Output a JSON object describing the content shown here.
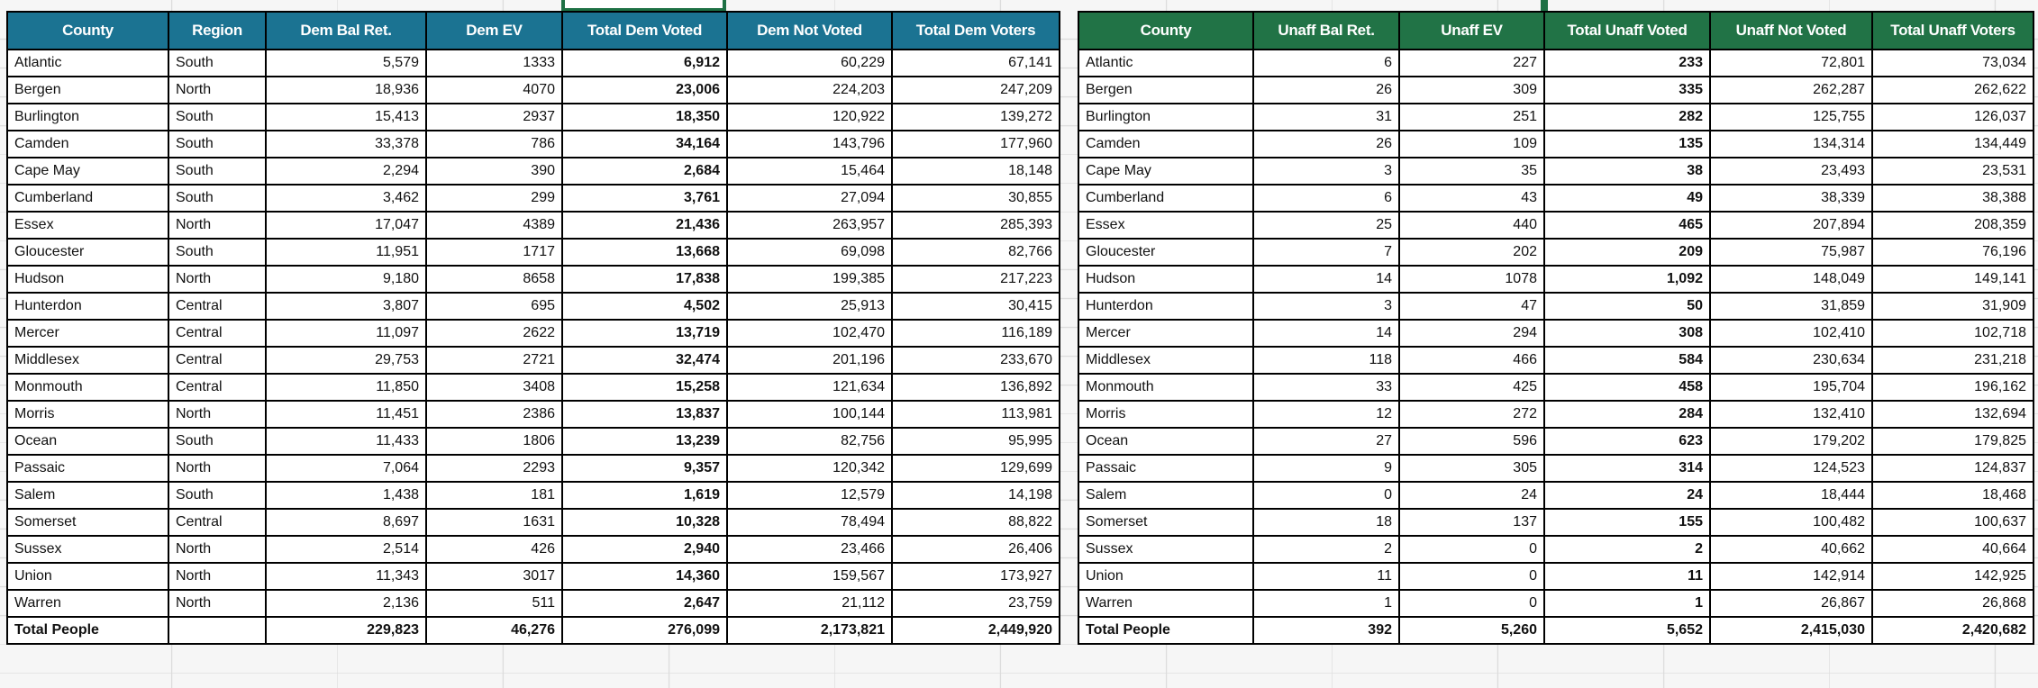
{
  "selection_color": "#1e7145",
  "tables": [
    {
      "id": "dem",
      "header_color": "#1b7392",
      "columns": [
        "County",
        "Region",
        "Dem Bal Ret.",
        "Dem EV",
        "Total Dem Voted",
        "Dem Not Voted",
        "Total Dem Voters"
      ],
      "rows": [
        [
          "Atlantic",
          "South",
          "5,579",
          "1333",
          "6,912",
          "60,229",
          "67,141"
        ],
        [
          "Bergen",
          "North",
          "18,936",
          "4070",
          "23,006",
          "224,203",
          "247,209"
        ],
        [
          "Burlington",
          "South",
          "15,413",
          "2937",
          "18,350",
          "120,922",
          "139,272"
        ],
        [
          "Camden",
          "South",
          "33,378",
          "786",
          "34,164",
          "143,796",
          "177,960"
        ],
        [
          "Cape May",
          "South",
          "2,294",
          "390",
          "2,684",
          "15,464",
          "18,148"
        ],
        [
          "Cumberland",
          "South",
          "3,462",
          "299",
          "3,761",
          "27,094",
          "30,855"
        ],
        [
          "Essex",
          "North",
          "17,047",
          "4389",
          "21,436",
          "263,957",
          "285,393"
        ],
        [
          "Gloucester",
          "South",
          "11,951",
          "1717",
          "13,668",
          "69,098",
          "82,766"
        ],
        [
          "Hudson",
          "North",
          "9,180",
          "8658",
          "17,838",
          "199,385",
          "217,223"
        ],
        [
          "Hunterdon",
          "Central",
          "3,807",
          "695",
          "4,502",
          "25,913",
          "30,415"
        ],
        [
          "Mercer",
          "Central",
          "11,097",
          "2622",
          "13,719",
          "102,470",
          "116,189"
        ],
        [
          "Middlesex",
          "Central",
          "29,753",
          "2721",
          "32,474",
          "201,196",
          "233,670"
        ],
        [
          "Monmouth",
          "Central",
          "11,850",
          "3408",
          "15,258",
          "121,634",
          "136,892"
        ],
        [
          "Morris",
          "North",
          "11,451",
          "2386",
          "13,837",
          "100,144",
          "113,981"
        ],
        [
          "Ocean",
          "South",
          "11,433",
          "1806",
          "13,239",
          "82,756",
          "95,995"
        ],
        [
          "Passaic",
          "North",
          "7,064",
          "2293",
          "9,357",
          "120,342",
          "129,699"
        ],
        [
          "Salem",
          "South",
          "1,438",
          "181",
          "1,619",
          "12,579",
          "14,198"
        ],
        [
          "Somerset",
          "Central",
          "8,697",
          "1631",
          "10,328",
          "78,494",
          "88,822"
        ],
        [
          "Sussex",
          "North",
          "2,514",
          "426",
          "2,940",
          "23,466",
          "26,406"
        ],
        [
          "Union",
          "North",
          "11,343",
          "3017",
          "14,360",
          "159,567",
          "173,927"
        ],
        [
          "Warren",
          "North",
          "2,136",
          "511",
          "2,647",
          "21,112",
          "23,759"
        ]
      ],
      "total_row": [
        "Total People",
        "",
        "229,823",
        "46,276",
        "276,099",
        "2,173,821",
        "2,449,920"
      ]
    },
    {
      "id": "unaff",
      "header_color": "#217346",
      "columns": [
        "County",
        "Unaff Bal Ret.",
        "Unaff EV",
        "Total Unaff Voted",
        "Unaff Not Voted",
        "Total Unaff Voters"
      ],
      "rows": [
        [
          "Atlantic",
          "6",
          "227",
          "233",
          "72,801",
          "73,034"
        ],
        [
          "Bergen",
          "26",
          "309",
          "335",
          "262,287",
          "262,622"
        ],
        [
          "Burlington",
          "31",
          "251",
          "282",
          "125,755",
          "126,037"
        ],
        [
          "Camden",
          "26",
          "109",
          "135",
          "134,314",
          "134,449"
        ],
        [
          "Cape May",
          "3",
          "35",
          "38",
          "23,493",
          "23,531"
        ],
        [
          "Cumberland",
          "6",
          "43",
          "49",
          "38,339",
          "38,388"
        ],
        [
          "Essex",
          "25",
          "440",
          "465",
          "207,894",
          "208,359"
        ],
        [
          "Gloucester",
          "7",
          "202",
          "209",
          "75,987",
          "76,196"
        ],
        [
          "Hudson",
          "14",
          "1078",
          "1,092",
          "148,049",
          "149,141"
        ],
        [
          "Hunterdon",
          "3",
          "47",
          "50",
          "31,859",
          "31,909"
        ],
        [
          "Mercer",
          "14",
          "294",
          "308",
          "102,410",
          "102,718"
        ],
        [
          "Middlesex",
          "118",
          "466",
          "584",
          "230,634",
          "231,218"
        ],
        [
          "Monmouth",
          "33",
          "425",
          "458",
          "195,704",
          "196,162"
        ],
        [
          "Morris",
          "12",
          "272",
          "284",
          "132,410",
          "132,694"
        ],
        [
          "Ocean",
          "27",
          "596",
          "623",
          "179,202",
          "179,825"
        ],
        [
          "Passaic",
          "9",
          "305",
          "314",
          "124,523",
          "124,837"
        ],
        [
          "Salem",
          "0",
          "24",
          "24",
          "18,444",
          "18,468"
        ],
        [
          "Somerset",
          "18",
          "137",
          "155",
          "100,482",
          "100,637"
        ],
        [
          "Sussex",
          "2",
          "0",
          "2",
          "40,662",
          "40,664"
        ],
        [
          "Union",
          "11",
          "0",
          "11",
          "142,914",
          "142,925"
        ],
        [
          "Warren",
          "1",
          "0",
          "1",
          "26,867",
          "26,868"
        ]
      ],
      "total_row": [
        "Total People",
        "392",
        "5,260",
        "5,652",
        "2,415,030",
        "2,420,682"
      ]
    }
  ]
}
